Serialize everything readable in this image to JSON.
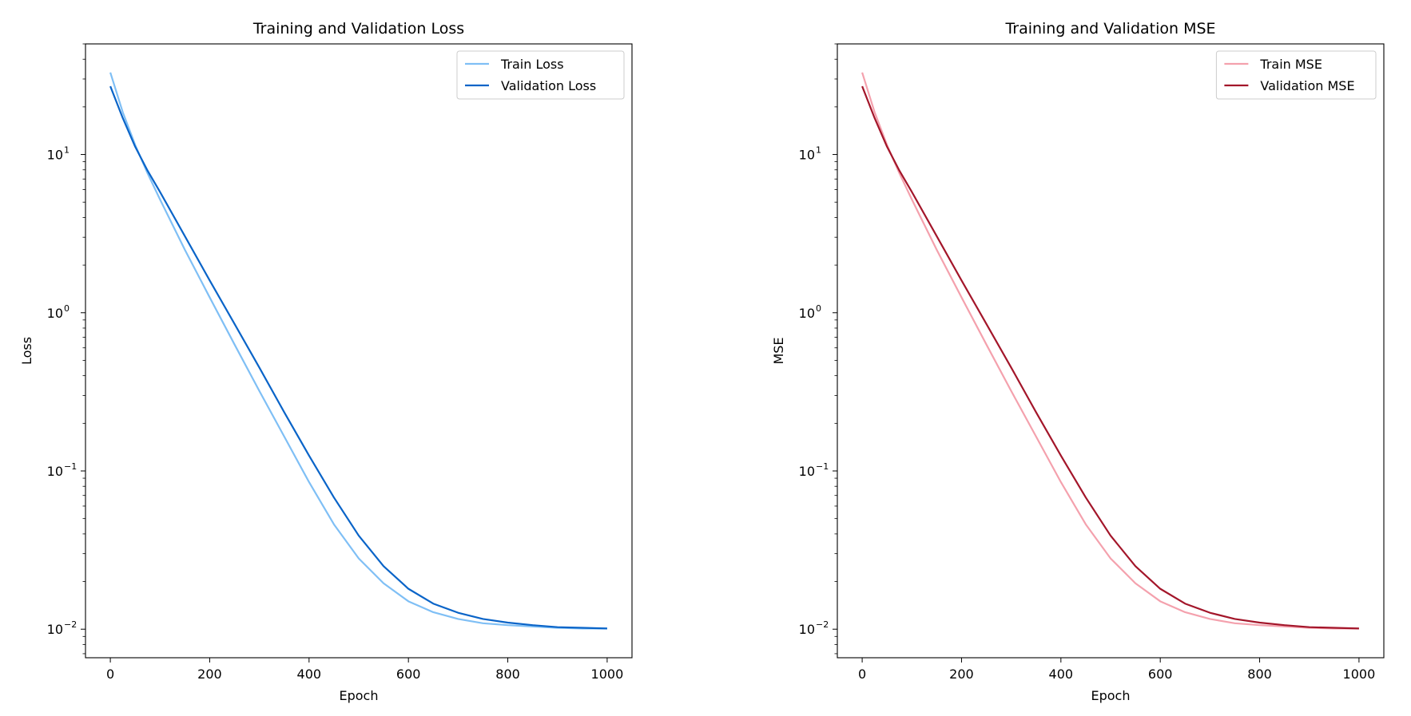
{
  "chart_data": [
    {
      "type": "line",
      "title": "Training and Validation Loss",
      "xlabel": "Epoch",
      "ylabel": "Loss",
      "yscale": "log",
      "xlim": [
        -50,
        1050
      ],
      "ylim": [
        0.0066,
        50
      ],
      "xticks": [
        {
          "value": 0,
          "label": "0"
        },
        {
          "value": 200,
          "label": "200"
        },
        {
          "value": 400,
          "label": "400"
        },
        {
          "value": 600,
          "label": "600"
        },
        {
          "value": 800,
          "label": "800"
        },
        {
          "value": 1000,
          "label": "1000"
        }
      ],
      "yticks": [
        {
          "value": 10,
          "base": "10",
          "exp": "1"
        },
        {
          "value": 1,
          "base": "10",
          "exp": "0"
        },
        {
          "value": 0.1,
          "base": "10",
          "exp": "−1"
        },
        {
          "value": 0.01,
          "base": "10",
          "exp": "−2"
        }
      ],
      "legend": "upper right",
      "grid": false,
      "series": [
        {
          "name": "Train Loss",
          "color": "#7fbff5",
          "x": [
            0,
            25,
            50,
            75,
            100,
            150,
            200,
            250,
            300,
            350,
            400,
            450,
            500,
            550,
            600,
            650,
            700,
            750,
            800,
            850,
            900,
            950,
            1000
          ],
          "y": [
            33,
            18.5,
            11.5,
            7.6,
            5.2,
            2.5,
            1.25,
            0.63,
            0.32,
            0.165,
            0.085,
            0.046,
            0.028,
            0.0195,
            0.015,
            0.0128,
            0.0116,
            0.0109,
            0.0106,
            0.0104,
            0.0102,
            0.0101,
            0.0101
          ]
        },
        {
          "name": "Validation Loss",
          "color": "#0a64c8",
          "x": [
            0,
            25,
            50,
            75,
            100,
            150,
            200,
            250,
            300,
            350,
            400,
            450,
            500,
            550,
            600,
            650,
            700,
            750,
            800,
            850,
            900,
            950,
            1000
          ],
          "y": [
            27,
            17,
            11.2,
            7.9,
            5.8,
            3.05,
            1.6,
            0.85,
            0.45,
            0.235,
            0.125,
            0.068,
            0.039,
            0.025,
            0.018,
            0.0145,
            0.0127,
            0.0116,
            0.011,
            0.0106,
            0.0103,
            0.0102,
            0.0101
          ]
        }
      ]
    },
    {
      "type": "line",
      "title": "Training and Validation MSE",
      "xlabel": "Epoch",
      "ylabel": "MSE",
      "yscale": "log",
      "xlim": [
        -50,
        1050
      ],
      "ylim": [
        0.0066,
        50
      ],
      "xticks": [
        {
          "value": 0,
          "label": "0"
        },
        {
          "value": 200,
          "label": "200"
        },
        {
          "value": 400,
          "label": "400"
        },
        {
          "value": 600,
          "label": "600"
        },
        {
          "value": 800,
          "label": "800"
        },
        {
          "value": 1000,
          "label": "1000"
        }
      ],
      "yticks": [
        {
          "value": 10,
          "base": "10",
          "exp": "1"
        },
        {
          "value": 1,
          "base": "10",
          "exp": "0"
        },
        {
          "value": 0.1,
          "base": "10",
          "exp": "−1"
        },
        {
          "value": 0.01,
          "base": "10",
          "exp": "−2"
        }
      ],
      "legend": "upper right",
      "grid": false,
      "series": [
        {
          "name": "Train MSE",
          "color": "#f4a1ad",
          "x": [
            0,
            25,
            50,
            75,
            100,
            150,
            200,
            250,
            300,
            350,
            400,
            450,
            500,
            550,
            600,
            650,
            700,
            750,
            800,
            850,
            900,
            950,
            1000
          ],
          "y": [
            33,
            18.5,
            11.5,
            7.6,
            5.2,
            2.5,
            1.25,
            0.63,
            0.32,
            0.165,
            0.085,
            0.046,
            0.028,
            0.0195,
            0.015,
            0.0128,
            0.0116,
            0.0109,
            0.0106,
            0.0104,
            0.0102,
            0.0101,
            0.0101
          ]
        },
        {
          "name": "Validation MSE",
          "color": "#a3162a",
          "x": [
            0,
            25,
            50,
            75,
            100,
            150,
            200,
            250,
            300,
            350,
            400,
            450,
            500,
            550,
            600,
            650,
            700,
            750,
            800,
            850,
            900,
            950,
            1000
          ],
          "y": [
            27,
            17,
            11.2,
            7.9,
            5.8,
            3.05,
            1.6,
            0.85,
            0.45,
            0.235,
            0.125,
            0.068,
            0.039,
            0.025,
            0.018,
            0.0145,
            0.0127,
            0.0116,
            0.011,
            0.0106,
            0.0103,
            0.0102,
            0.0101
          ]
        }
      ]
    }
  ]
}
